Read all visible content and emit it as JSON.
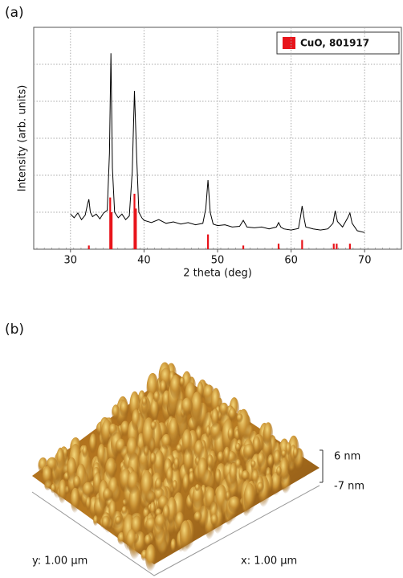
{
  "panel_labels": [
    "(a)",
    "(b)"
  ],
  "chart_data": {
    "type": "line",
    "x_label": "2 theta (deg)",
    "y_label": "Intensity (arb. units)",
    "xlim": [
      25,
      75
    ],
    "xticks": [
      30,
      40,
      50,
      60,
      70
    ],
    "ylim": [
      0,
      6
    ],
    "yticks": [
      1,
      2,
      3,
      4,
      5
    ],
    "grid": true,
    "legend": "upper right",
    "series": [
      {
        "color": "#000000",
        "style": "line",
        "x": [
          30,
          30.5,
          31,
          31.5,
          32,
          32.3,
          32.5,
          32.7,
          33,
          33.5,
          34,
          34.5,
          35,
          35.3,
          35.5,
          35.7,
          36,
          36.5,
          37,
          37.5,
          38,
          38.4,
          38.7,
          39,
          39.3,
          39.7,
          40,
          41,
          42,
          43,
          44,
          45,
          46,
          47,
          48,
          48.4,
          48.7,
          49,
          49.4,
          50,
          51,
          52,
          53,
          53.5,
          54,
          55,
          56,
          57,
          58,
          58.3,
          58.6,
          59,
          60,
          61,
          61.3,
          61.5,
          61.8,
          62,
          63,
          64,
          65,
          65.7,
          66,
          66.3,
          67,
          67.7,
          68,
          68.3,
          69,
          70
        ],
        "values": [
          0.95,
          0.85,
          0.98,
          0.8,
          0.92,
          1.2,
          1.35,
          1.0,
          0.88,
          0.95,
          0.82,
          0.98,
          1.05,
          2.6,
          5.3,
          2.2,
          1.0,
          0.85,
          0.95,
          0.8,
          0.9,
          2.1,
          4.28,
          2.5,
          1.0,
          0.85,
          0.78,
          0.72,
          0.8,
          0.7,
          0.74,
          0.68,
          0.72,
          0.66,
          0.7,
          1.1,
          1.87,
          1.0,
          0.68,
          0.64,
          0.66,
          0.6,
          0.62,
          0.78,
          0.6,
          0.58,
          0.6,
          0.55,
          0.6,
          0.72,
          0.6,
          0.55,
          0.52,
          0.56,
          0.9,
          1.17,
          0.8,
          0.6,
          0.55,
          0.52,
          0.55,
          0.7,
          1.04,
          0.75,
          0.6,
          0.85,
          0.98,
          0.7,
          0.5,
          0.45
        ]
      },
      {
        "name": "CuO, 801917",
        "color": "#e8141b",
        "style": "stick",
        "x": [
          32.5,
          35.4,
          35.6,
          38.7,
          38.9,
          48.7,
          53.5,
          58.3,
          61.5,
          65.8,
          66.2,
          68.0
        ],
        "values": [
          0.1,
          1.4,
          1.0,
          1.5,
          1.1,
          0.4,
          0.1,
          0.15,
          0.25,
          0.15,
          0.15,
          0.15
        ]
      }
    ]
  },
  "afm_image": {
    "scale_max": "6 nm",
    "scale_min": "-7 nm",
    "y_size": "y: 1.00 µm",
    "x_size": "x: 1.00 µm"
  }
}
